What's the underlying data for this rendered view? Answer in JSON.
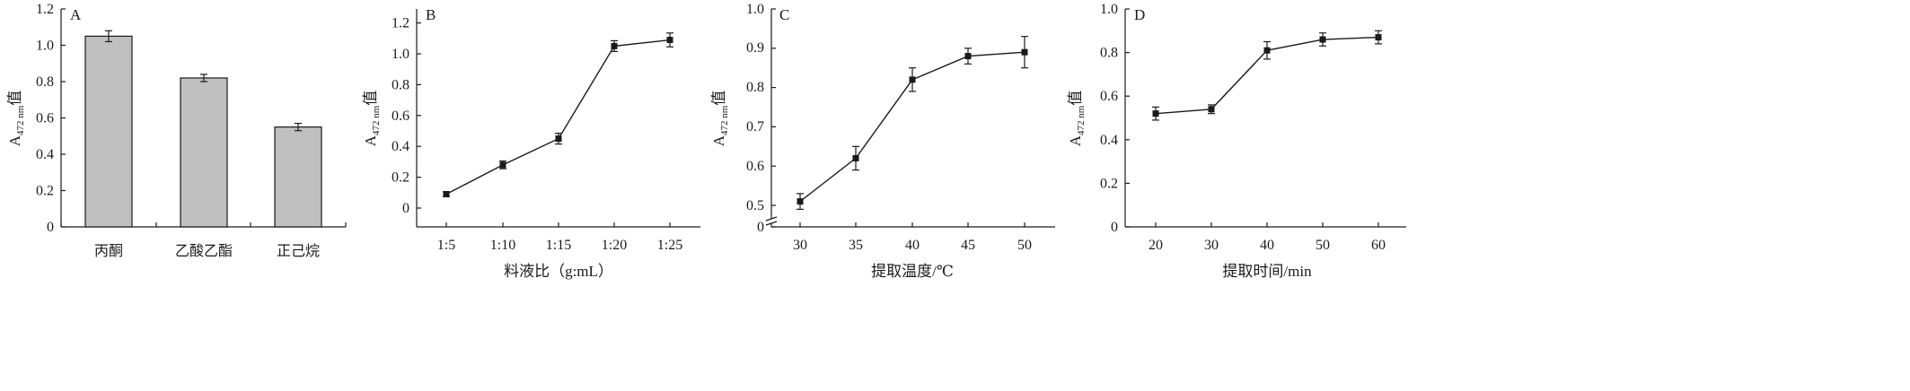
{
  "chart_data": [
    {
      "panel": "A",
      "type": "bar",
      "categories": [
        "丙酮",
        "乙酸乙酯",
        "正己烷"
      ],
      "values": [
        1.05,
        0.82,
        0.55
      ],
      "errors": [
        0.03,
        0.02,
        0.02
      ],
      "ylabel": {
        "main": "A",
        "sub": "472 nm",
        "suffix": "值"
      },
      "xlabel": "",
      "ylim": [
        0,
        1.2
      ],
      "yticks": [
        "0",
        "0.2",
        "0.4",
        "0.6",
        "0.8",
        "1.0",
        "1.2"
      ],
      "bar_color": "#c0c0c0",
      "grid": false
    },
    {
      "panel": "B",
      "type": "line",
      "categories": [
        "1:5",
        "1:10",
        "1:15",
        "1:20",
        "1:25"
      ],
      "values": [
        0.09,
        0.28,
        0.45,
        1.05,
        1.09
      ],
      "errors": [
        0.015,
        0.025,
        0.035,
        0.035,
        0.045
      ],
      "ylabel": {
        "main": "A",
        "sub": "472 nm",
        "suffix": "值"
      },
      "xlabel": "料液比（g:mL）",
      "ylim": [
        -0.1,
        1.3
      ],
      "yticks": [
        "0",
        "0.2",
        "0.4",
        "0.6",
        "0.8",
        "1.0",
        "1.2"
      ],
      "grid": false
    },
    {
      "panel": "C",
      "type": "line",
      "x": [
        30,
        35,
        40,
        45,
        50
      ],
      "values": [
        0.51,
        0.62,
        0.82,
        0.88,
        0.89
      ],
      "errors": [
        0.02,
        0.03,
        0.03,
        0.02,
        0.04
      ],
      "ylabel": {
        "main": "A",
        "sub": "472 nm",
        "suffix": "值"
      },
      "xlabel": "提取温度/℃",
      "ylim": [
        0.45,
        1.0
      ],
      "yticks": [
        "0",
        "0.5",
        "0.6",
        "0.7",
        "0.8",
        "0.9",
        "1.0"
      ],
      "xticks": [
        "30",
        "35",
        "40",
        "45",
        "50"
      ],
      "axis_break": true,
      "grid": false
    },
    {
      "panel": "D",
      "type": "line",
      "x": [
        20,
        30,
        40,
        50,
        60
      ],
      "values": [
        0.52,
        0.54,
        0.81,
        0.86,
        0.87
      ],
      "errors": [
        0.03,
        0.02,
        0.04,
        0.03,
        0.03
      ],
      "ylabel": {
        "main": "A",
        "sub": "472 nm",
        "suffix": "值"
      },
      "xlabel": "提取时间/min",
      "ylim": [
        0,
        1.0
      ],
      "yticks": [
        "0",
        "0.2",
        "0.4",
        "0.6",
        "0.8",
        "1.0"
      ],
      "xticks": [
        "20",
        "30",
        "40",
        "50",
        "60"
      ],
      "grid": false
    }
  ]
}
